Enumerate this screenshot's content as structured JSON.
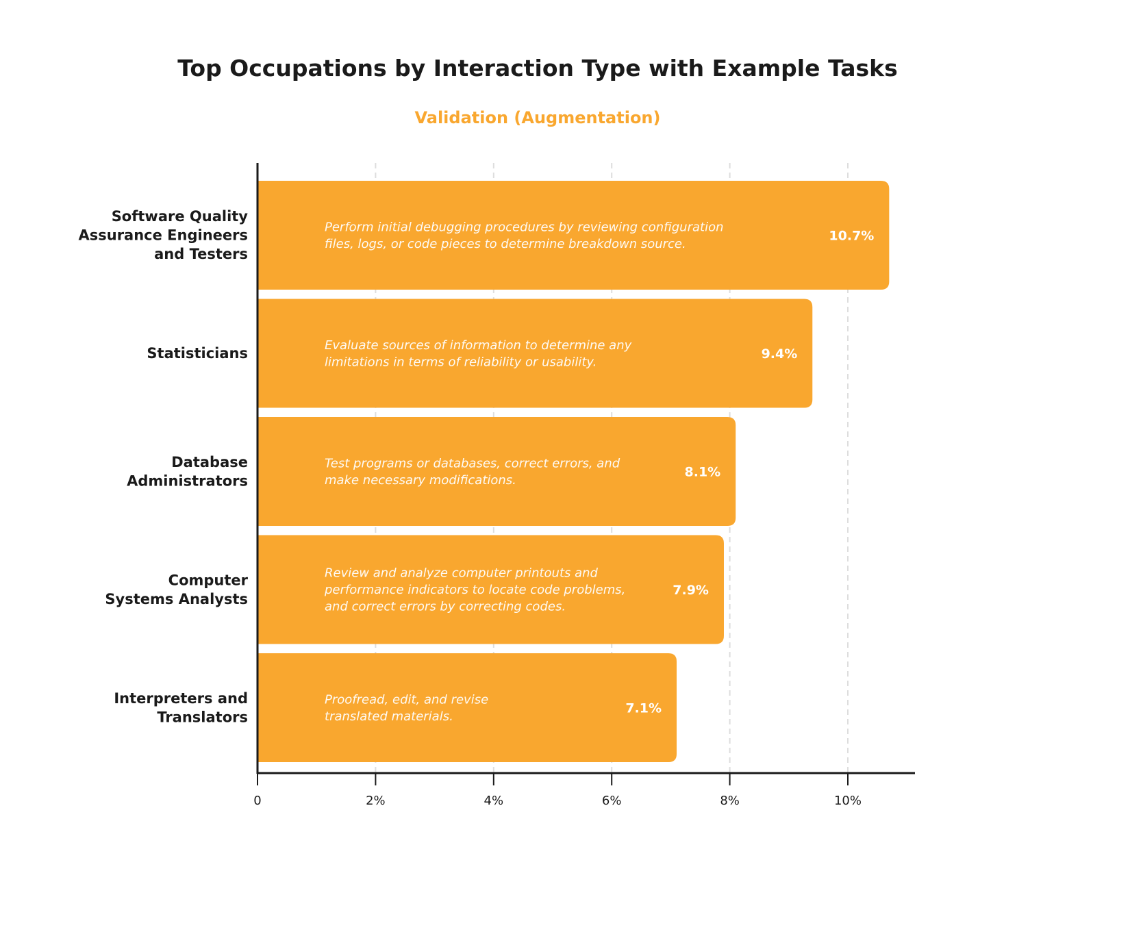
{
  "chart_data": {
    "type": "bar",
    "orientation": "horizontal",
    "title": "Top Occupations by Interaction Type with Example Tasks",
    "subtitle": "Validation (Augmentation)",
    "categories": [
      [
        "Software Quality",
        "Assurance Engineers",
        "and Testers"
      ],
      [
        "Statisticians"
      ],
      [
        "Database",
        "Administrators"
      ],
      [
        "Computer",
        "Systems Analysts"
      ],
      [
        "Interpreters and",
        "Translators"
      ]
    ],
    "values": [
      10.7,
      9.4,
      8.1,
      7.9,
      7.1
    ],
    "value_labels": [
      "10.7%",
      "9.4%",
      "8.1%",
      "7.9%",
      "7.1%"
    ],
    "tasks": [
      [
        "Perform initial debugging procedures by reviewing configuration",
        "files, logs, or code pieces to determine breakdown source."
      ],
      [
        "Evaluate sources of information to determine any",
        "limitations in terms of reliability or usability."
      ],
      [
        "Test programs or databases, correct errors, and",
        "make necessary modifications."
      ],
      [
        "Review and analyze computer printouts and",
        "performance indicators to locate code problems,",
        "and correct errors by correcting codes."
      ],
      [
        "Proofread, edit, and revise",
        "translated materials."
      ]
    ],
    "xlim": [
      0,
      11.1
    ],
    "xticks": [
      0,
      2,
      4,
      6,
      8,
      10
    ],
    "xtick_labels": [
      "0",
      "2%",
      "4%",
      "6%",
      "8%",
      "10%"
    ],
    "grid": "vertical dashed",
    "colors": {
      "bar": "#F9A72F",
      "subtitle": "#F9A72F",
      "text": "#1a1a1a",
      "grid": "#dddddd"
    }
  }
}
